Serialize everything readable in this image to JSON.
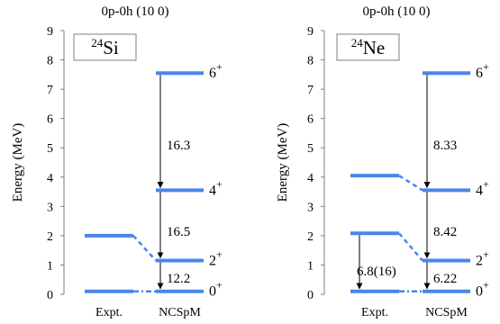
{
  "chart_data": [
    {
      "type": "level-scheme",
      "title": "0p-0h (10 0)",
      "nucleus_mass": "24",
      "nucleus_symbol": "Si",
      "ylabel": "Energy (MeV)",
      "ylim": [
        0,
        9
      ],
      "yticks": [
        "0",
        "1",
        "2",
        "3",
        "4",
        "5",
        "6",
        "7",
        "8",
        "9"
      ],
      "columns": [
        "Expt.",
        "NCSpM"
      ],
      "levels": [
        {
          "id": "e0",
          "column": "Expt.",
          "energy": 0.1
        },
        {
          "id": "e2",
          "column": "Expt.",
          "energy": 2.0
        },
        {
          "id": "n0",
          "column": "NCSpM",
          "energy": 0.1,
          "label": "0",
          "parity": "+"
        },
        {
          "id": "n2",
          "column": "NCSpM",
          "energy": 1.15,
          "label": "2",
          "parity": "+"
        },
        {
          "id": "n4",
          "column": "NCSpM",
          "energy": 3.55,
          "label": "4",
          "parity": "+"
        },
        {
          "id": "n6",
          "column": "NCSpM",
          "energy": 7.55,
          "label": "6",
          "parity": "+"
        }
      ],
      "connectors": [
        {
          "from": "e0",
          "to": "n0",
          "style": "dashdot"
        },
        {
          "from": "e2",
          "to": "n2",
          "style": "dashed"
        }
      ],
      "transitions": [
        {
          "from": "n6",
          "to": "n4",
          "value": "16.3",
          "label_energy": 5.1
        },
        {
          "from": "n4",
          "to": "n2",
          "value": "16.5",
          "label_energy": 2.15
        },
        {
          "from": "n2",
          "to": "n0",
          "value": "12.2",
          "label_energy": 0.55
        }
      ],
      "colors": {
        "level": "#4a86e8",
        "arrow": "#000000"
      }
    },
    {
      "type": "level-scheme",
      "title": "0p-0h (10 0)",
      "nucleus_mass": "24",
      "nucleus_symbol": "Ne",
      "ylabel": "Energy (MeV)",
      "ylim": [
        0,
        9
      ],
      "yticks": [
        "0",
        "1",
        "2",
        "3",
        "4",
        "5",
        "6",
        "7",
        "8",
        "9"
      ],
      "columns": [
        "Expt.",
        "NCSpM"
      ],
      "levels": [
        {
          "id": "e0",
          "column": "Expt.",
          "energy": 0.1
        },
        {
          "id": "e2",
          "column": "Expt.",
          "energy": 2.08
        },
        {
          "id": "e4",
          "column": "Expt.",
          "energy": 4.05
        },
        {
          "id": "n0",
          "column": "NCSpM",
          "energy": 0.1,
          "label": "0",
          "parity": "+"
        },
        {
          "id": "n2",
          "column": "NCSpM",
          "energy": 1.15,
          "label": "2",
          "parity": "+"
        },
        {
          "id": "n4",
          "column": "NCSpM",
          "energy": 3.55,
          "label": "4",
          "parity": "+"
        },
        {
          "id": "n6",
          "column": "NCSpM",
          "energy": 7.55,
          "label": "6",
          "parity": "+"
        }
      ],
      "connectors": [
        {
          "from": "e0",
          "to": "n0",
          "style": "dashdot"
        },
        {
          "from": "e2",
          "to": "n2",
          "style": "dashed"
        },
        {
          "from": "e4",
          "to": "n4",
          "style": "dashed"
        }
      ],
      "transitions": [
        {
          "from": "n6",
          "to": "n4",
          "value": "8.33",
          "label_energy": 5.1
        },
        {
          "from": "n4",
          "to": "n2",
          "value": "8.42",
          "label_energy": 2.15
        },
        {
          "from": "n2",
          "to": "n0",
          "value": "6.22",
          "label_energy": 0.55
        },
        {
          "from": "e2",
          "to": "e0",
          "value": "6.8(16)",
          "label_energy": 0.8
        }
      ],
      "colors": {
        "level": "#4a86e8",
        "arrow": "#000000"
      }
    }
  ]
}
